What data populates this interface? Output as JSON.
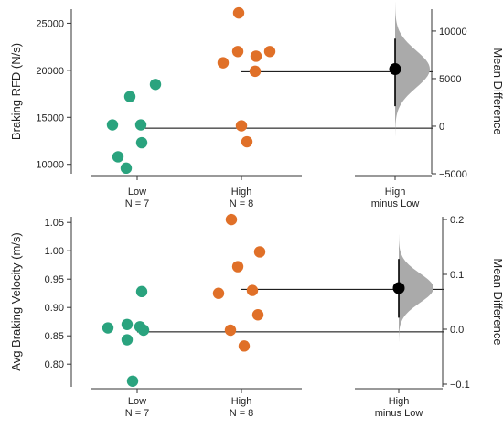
{
  "chart_data": [
    {
      "type": "estimation-swarm",
      "ylabel": "Braking RFD (N/s)",
      "ylabel_right": "Mean Difference",
      "ylim": [
        9000,
        26500
      ],
      "yticks": [
        10000,
        15000,
        20000,
        25000
      ],
      "ytick_labels": [
        "10000",
        "15000",
        "20000",
        "25000"
      ],
      "diff_ylim": [
        -5000,
        12300
      ],
      "diff_yticks": [
        -5000,
        0,
        5000,
        10000
      ],
      "diff_ytick_labels": [
        "−5000",
        "0",
        "5000",
        "10000"
      ],
      "groups": [
        {
          "name": "Low",
          "n_label": "N = 7",
          "color": "#2aa37e",
          "values": [
            14200,
            17200,
            18500,
            14200,
            12300,
            10800,
            9600
          ]
        },
        {
          "name": "High",
          "n_label": "N = 8",
          "color": "#e07028",
          "values": [
            26100,
            20800,
            22000,
            21500,
            22000,
            19900,
            14100,
            12400
          ]
        }
      ],
      "group_means": [
        13850,
        19850
      ],
      "diff_label": [
        "High",
        "minus Low"
      ],
      "mean_difference": 6000,
      "ci": [
        2100,
        9200
      ],
      "ci_color": "#000000",
      "distribution_color": "#aaaaaa",
      "bootstrap_sd": 1950
    },
    {
      "type": "estimation-swarm",
      "ylabel": "Avg Braking Velocity (m/s)",
      "ylabel_right": "Mean Difference",
      "ylim": [
        0.76,
        1.06
      ],
      "yticks": [
        0.8,
        0.85,
        0.9,
        0.95,
        1.0,
        1.05
      ],
      "ytick_labels": [
        "0.80",
        "0.85",
        "0.90",
        "0.95",
        "1.00",
        "1.05"
      ],
      "diff_ylim": [
        -0.105,
        0.205
      ],
      "diff_yticks": [
        -0.1,
        0.0,
        0.1,
        0.2
      ],
      "diff_ytick_labels": [
        "−0.1",
        "0.0",
        "0.1",
        "0.2"
      ],
      "groups": [
        {
          "name": "Low",
          "n_label": "N = 7",
          "color": "#2aa37e",
          "values": [
            0.928,
            0.864,
            0.87,
            0.866,
            0.86,
            0.843,
            0.77
          ]
        },
        {
          "name": "High",
          "n_label": "N = 8",
          "color": "#e07028",
          "values": [
            1.055,
            0.998,
            0.972,
            0.925,
            0.93,
            0.887,
            0.86,
            0.832
          ]
        }
      ],
      "group_means": [
        0.857,
        0.932
      ],
      "diff_label": [
        "High",
        "minus Low"
      ],
      "mean_difference": 0.075,
      "ci": [
        0.021,
        0.128
      ],
      "ci_color": "#000000",
      "distribution_color": "#aaaaaa",
      "bootstrap_sd": 0.027
    }
  ]
}
